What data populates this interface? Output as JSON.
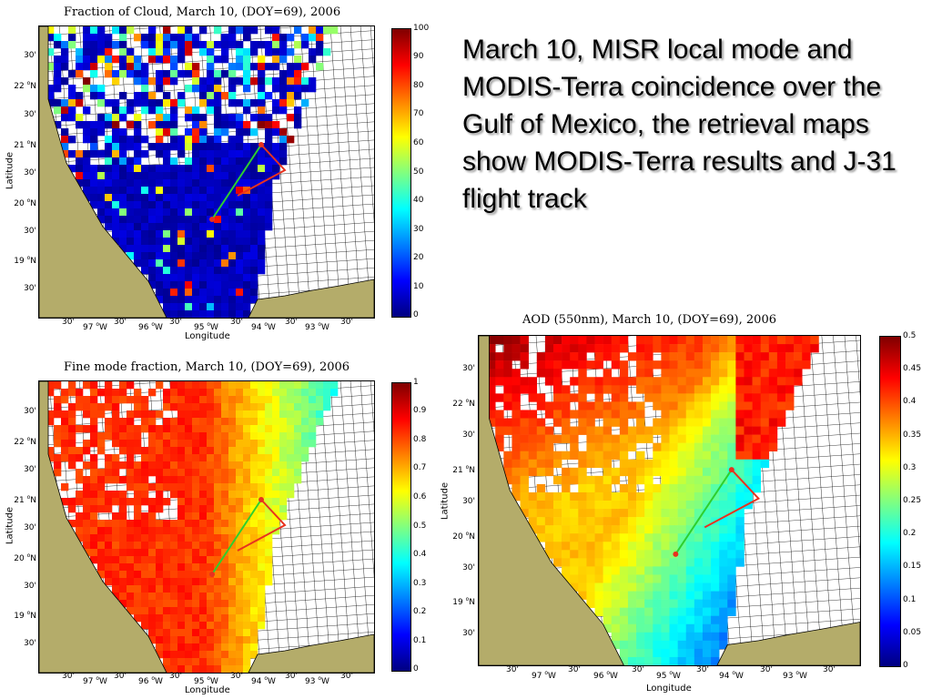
{
  "annotation": "March 10, MISR local mode and MODIS-Terra coincidence over the Gulf of Mexico, the retrieval maps show MODIS-Terra results and J-31 flight track",
  "axis_labels": {
    "x": "Longitude",
    "y": "Latitude"
  },
  "lat_labels": {
    "l30a": "30'",
    "l22": "22",
    "l30b": "30'",
    "l21": "21",
    "l30c": "30'",
    "l20": "20",
    "l30d": "30'",
    "l19": "19",
    "l30e": "30'",
    "suffix_deg": "o",
    "suffix_dir": "N"
  },
  "lon_labels": {
    "m1": "30'",
    "w97": "97",
    "m2": "30'",
    "w96": "96",
    "m3": "30'",
    "w95": "95",
    "m4": "30'",
    "w94": "94",
    "m5": "30'",
    "w93": "93",
    "m6": "30'",
    "suffix_deg": "o",
    "suffix_dir": "W"
  },
  "colors": {
    "land": "#b4ac6a",
    "track_red": "#e8321e",
    "track_green": "#2ecf2e"
  },
  "panels": {
    "cloud": {
      "title": "Fraction of Cloud, March 10, (DOY=69), 2006",
      "colorbar_ticks": [
        "100",
        "90",
        "80",
        "70",
        "60",
        "50",
        "40",
        "30",
        "20",
        "10",
        "0"
      ],
      "scale_max": 100
    },
    "fine": {
      "title": "Fine mode fraction, March 10, (DOY=69), 2006",
      "colorbar_ticks": [
        "1",
        "0.9",
        "0.8",
        "0.7",
        "0.6",
        "0.5",
        "0.4",
        "0.3",
        "0.2",
        "0.1",
        "0"
      ],
      "scale_max": 1
    },
    "aod": {
      "title": "AOD (550nm), March 10, (DOY=69), 2006",
      "colorbar_ticks": [
        "0.5",
        "0.45",
        "0.4",
        "0.35",
        "0.3",
        "0.25",
        "0.2",
        "0.15",
        "0.1",
        "0.05",
        "0"
      ],
      "scale_max": 0.5
    }
  }
}
